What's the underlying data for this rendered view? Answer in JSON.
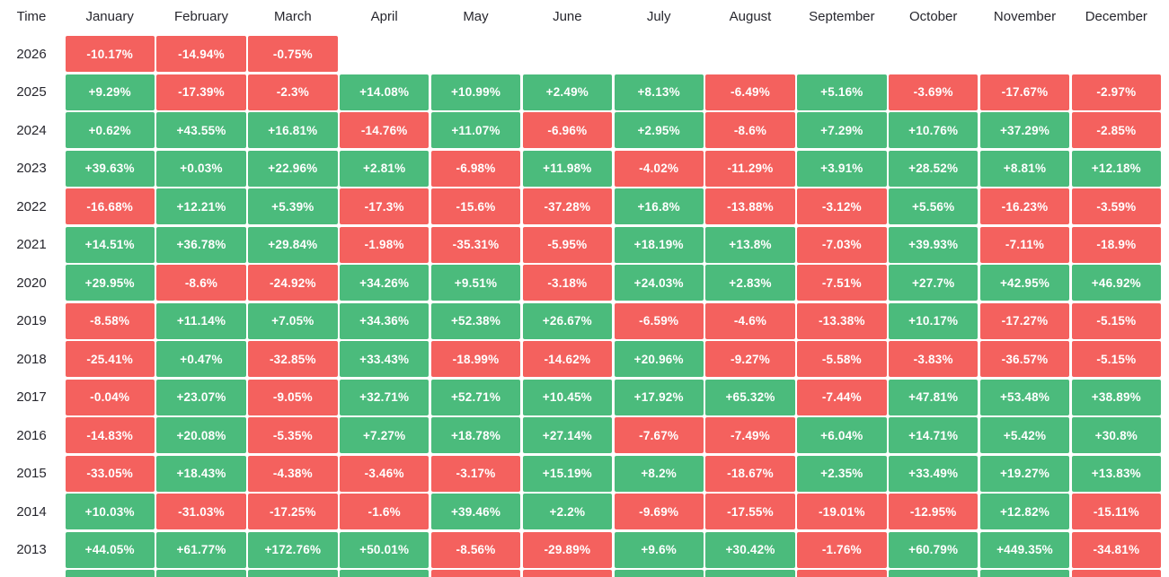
{
  "colors": {
    "positive": "#4BBB7C",
    "negative": "#F4615E",
    "header_text": "#27272E",
    "cell_text": "#FFFFFF",
    "background": "#FFFFFF"
  },
  "table": {
    "time_header": "Time",
    "partial_next_row_signs": [
      "pos",
      "pos",
      "pos",
      "pos",
      "neg",
      "neg",
      "pos",
      "pos",
      "neg",
      "pos",
      "pos",
      "neg"
    ]
  },
  "chart_data": {
    "type": "heatmap",
    "x_categories": [
      "January",
      "February",
      "March",
      "April",
      "May",
      "June",
      "July",
      "August",
      "September",
      "October",
      "November",
      "December"
    ],
    "y_categories": [
      "2026",
      "2025",
      "2024",
      "2023",
      "2022",
      "2021",
      "2020",
      "2019",
      "2018",
      "2017",
      "2016",
      "2015",
      "2014",
      "2013"
    ],
    "value_unit": "%",
    "legend": "green = positive monthly return, red = negative monthly return",
    "rows": [
      {
        "year": "2026",
        "values": [
          -10.17,
          -14.94,
          -0.75,
          null,
          null,
          null,
          null,
          null,
          null,
          null,
          null,
          null
        ]
      },
      {
        "year": "2025",
        "values": [
          9.29,
          -17.39,
          -2.3,
          14.08,
          10.99,
          2.49,
          8.13,
          -6.49,
          5.16,
          -3.69,
          -17.67,
          -2.97
        ]
      },
      {
        "year": "2024",
        "values": [
          0.62,
          43.55,
          16.81,
          -14.76,
          11.07,
          -6.96,
          2.95,
          -8.6,
          7.29,
          10.76,
          37.29,
          -2.85
        ]
      },
      {
        "year": "2023",
        "values": [
          39.63,
          0.03,
          22.96,
          2.81,
          -6.98,
          11.98,
          -4.02,
          -11.29,
          3.91,
          28.52,
          8.81,
          12.18
        ]
      },
      {
        "year": "2022",
        "values": [
          -16.68,
          12.21,
          5.39,
          -17.3,
          -15.6,
          -37.28,
          16.8,
          -13.88,
          -3.12,
          5.56,
          -16.23,
          -3.59
        ]
      },
      {
        "year": "2021",
        "values": [
          14.51,
          36.78,
          29.84,
          -1.98,
          -35.31,
          -5.95,
          18.19,
          13.8,
          -7.03,
          39.93,
          -7.11,
          -18.9
        ]
      },
      {
        "year": "2020",
        "values": [
          29.95,
          -8.6,
          -24.92,
          34.26,
          9.51,
          -3.18,
          24.03,
          2.83,
          -7.51,
          27.7,
          42.95,
          46.92
        ]
      },
      {
        "year": "2019",
        "values": [
          -8.58,
          11.14,
          7.05,
          34.36,
          52.38,
          26.67,
          -6.59,
          -4.6,
          -13.38,
          10.17,
          -17.27,
          -5.15
        ]
      },
      {
        "year": "2018",
        "values": [
          -25.41,
          0.47,
          -32.85,
          33.43,
          -18.99,
          -14.62,
          20.96,
          -9.27,
          -5.58,
          -3.83,
          -36.57,
          -5.15
        ]
      },
      {
        "year": "2017",
        "values": [
          -0.04,
          23.07,
          -9.05,
          32.71,
          52.71,
          10.45,
          17.92,
          65.32,
          -7.44,
          47.81,
          53.48,
          38.89
        ]
      },
      {
        "year": "2016",
        "values": [
          -14.83,
          20.08,
          -5.35,
          7.27,
          18.78,
          27.14,
          -7.67,
          -7.49,
          6.04,
          14.71,
          5.42,
          30.8
        ]
      },
      {
        "year": "2015",
        "values": [
          -33.05,
          18.43,
          -4.38,
          -3.46,
          -3.17,
          15.19,
          8.2,
          -18.67,
          2.35,
          33.49,
          19.27,
          13.83
        ]
      },
      {
        "year": "2014",
        "values": [
          10.03,
          -31.03,
          -17.25,
          -1.6,
          39.46,
          2.2,
          -9.69,
          -17.55,
          -19.01,
          -12.95,
          12.82,
          -15.11
        ]
      },
      {
        "year": "2013",
        "values": [
          44.05,
          61.77,
          172.76,
          50.01,
          -8.56,
          -29.89,
          9.6,
          30.42,
          -1.76,
          60.79,
          449.35,
          -34.81
        ]
      }
    ]
  }
}
